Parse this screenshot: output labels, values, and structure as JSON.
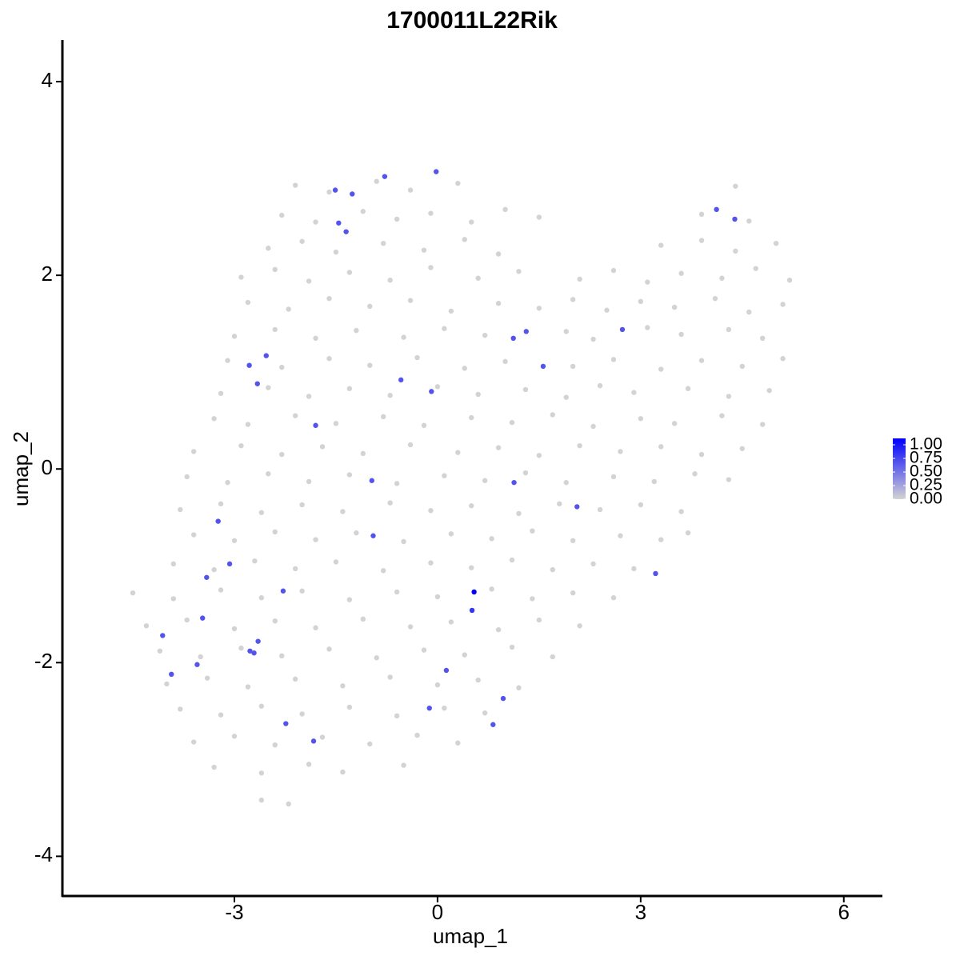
{
  "chart_data": {
    "type": "scatter",
    "title": "1700011L22Rik",
    "x_label": "umap_1",
    "y_label": "umap_2",
    "xlim": [
      -5.54,
      6.57
    ],
    "ylim": [
      -4.41,
      4.43
    ],
    "xticks": [
      -3,
      0,
      3,
      6
    ],
    "yticks": [
      -4,
      -2,
      0,
      2,
      4
    ],
    "low_color": "#d3d3d3",
    "high_color": "#0000ff",
    "colorbar_lim": [
      0,
      1
    ],
    "colorbar_ticks": [
      {
        "value": 0,
        "label": "0.00"
      },
      {
        "value": 0.25,
        "label": "0.25"
      },
      {
        "value": 0.5,
        "label": "0.50"
      },
      {
        "value": 0.75,
        "label": "0.75"
      },
      {
        "value": 1,
        "label": "1.00"
      }
    ],
    "x": [
      -2.1,
      -1.6,
      -0.9,
      -0.4,
      0.3,
      4.4,
      -2.3,
      -1.8,
      -1.1,
      -0.6,
      -0.1,
      0.5,
      1.0,
      1.5,
      3.9,
      4.6,
      -2.5,
      -2.0,
      -1.5,
      -0.8,
      -0.2,
      0.4,
      0.9,
      3.3,
      3.9,
      4.4,
      5.0,
      -2.9,
      -2.4,
      -1.9,
      -1.3,
      -0.7,
      -0.1,
      0.6,
      1.2,
      2.1,
      2.6,
      3.1,
      3.6,
      4.2,
      4.7,
      5.2,
      -2.8,
      -2.2,
      -1.6,
      -1.0,
      -0.4,
      0.2,
      0.9,
      1.5,
      2.0,
      2.5,
      3.0,
      3.5,
      4.1,
      4.6,
      5.1,
      -3.0,
      -2.4,
      -1.8,
      -1.2,
      -0.5,
      0.1,
      0.7,
      1.9,
      2.3,
      3.1,
      3.6,
      4.3,
      4.8,
      -3.1,
      -2.3,
      -1.6,
      -1.0,
      -0.3,
      0.4,
      1.0,
      2.0,
      2.6,
      3.3,
      3.9,
      4.5,
      5.1,
      -3.2,
      -2.5,
      -1.9,
      -1.3,
      -0.7,
      0.0,
      0.6,
      1.3,
      1.9,
      2.4,
      2.9,
      3.7,
      4.3,
      4.9,
      -3.3,
      -2.8,
      -2.1,
      -1.5,
      -0.8,
      -0.2,
      0.5,
      1.1,
      1.7,
      2.3,
      3.0,
      3.5,
      4.2,
      4.8,
      -3.6,
      -2.9,
      -2.3,
      -1.7,
      -1.1,
      -0.4,
      0.3,
      0.9,
      1.5,
      2.1,
      2.7,
      3.3,
      3.9,
      4.5,
      -3.7,
      -3.1,
      -2.5,
      -1.9,
      -1.3,
      -0.6,
      0.1,
      0.7,
      1.3,
      1.9,
      2.6,
      3.2,
      3.8,
      4.3,
      -3.8,
      -3.2,
      -2.6,
      -2.0,
      -1.4,
      -0.7,
      -0.1,
      0.5,
      1.2,
      1.8,
      2.4,
      3.0,
      3.6,
      -3.6,
      -3.0,
      -2.4,
      -1.8,
      -1.2,
      -0.5,
      0.2,
      0.8,
      1.4,
      2.0,
      2.7,
      3.3,
      3.7,
      -3.9,
      -3.3,
      -2.7,
      -2.1,
      -1.5,
      -0.8,
      -0.1,
      0.5,
      1.1,
      1.7,
      2.3,
      2.9,
      -4.5,
      -3.9,
      -3.2,
      -2.6,
      -2.0,
      -1.3,
      -0.6,
      0.0,
      0.8,
      1.4,
      2.0,
      2.6,
      -4.3,
      -3.7,
      -3.0,
      -2.4,
      -1.8,
      -1.1,
      -0.4,
      0.2,
      0.9,
      1.5,
      2.1,
      -4.1,
      -3.5,
      -2.9,
      -2.3,
      -1.6,
      -0.9,
      -0.2,
      0.4,
      1.1,
      1.7,
      -4.0,
      -3.4,
      -2.8,
      -2.1,
      -1.4,
      -0.7,
      0.0,
      0.6,
      1.2,
      -3.8,
      -3.2,
      -2.6,
      -2.0,
      -1.3,
      -0.6,
      0.1,
      0.7,
      -3.6,
      -3.0,
      -2.4,
      -1.7,
      -1.0,
      -0.3,
      0.3,
      -3.3,
      -2.6,
      -1.9,
      -1.4,
      -0.5,
      -2.6,
      -2.2,
      -0.02,
      -0.78,
      -1.51,
      -1.26,
      -1.46,
      -1.35,
      4.12,
      4.39,
      2.73,
      1.31,
      1.12,
      1.56,
      -2.78,
      -2.53,
      -2.66,
      -0.54,
      -0.09,
      -1.8,
      -0.97,
      1.13,
      2.06,
      -3.24,
      -0.95,
      -3.07,
      -3.41,
      3.22,
      -2.28,
      0.54,
      0.51,
      -3.47,
      -4.06,
      -2.65,
      -2.77,
      -2.71,
      -3.55,
      -3.93,
      0.13,
      0.97,
      -0.12,
      -2.24,
      0.82,
      -1.83
    ],
    "y": [
      2.93,
      2.86,
      2.97,
      2.88,
      2.95,
      2.92,
      2.62,
      2.55,
      2.66,
      2.58,
      2.64,
      2.55,
      2.68,
      2.6,
      2.63,
      2.56,
      2.28,
      2.35,
      2.24,
      2.33,
      2.26,
      2.37,
      2.22,
      2.31,
      2.36,
      2.25,
      2.33,
      1.98,
      2.06,
      1.94,
      2.03,
      1.95,
      2.08,
      1.97,
      2.04,
      1.96,
      2.05,
      1.93,
      2.02,
      1.97,
      2.07,
      1.95,
      1.72,
      1.65,
      1.76,
      1.68,
      1.74,
      1.63,
      1.71,
      1.66,
      1.75,
      1.64,
      1.73,
      1.67,
      1.76,
      1.62,
      1.7,
      1.37,
      1.44,
      1.35,
      1.43,
      1.36,
      1.45,
      1.38,
      1.42,
      1.34,
      1.46,
      1.39,
      1.44,
      1.35,
      1.12,
      1.05,
      1.14,
      1.07,
      1.15,
      1.04,
      1.11,
      1.06,
      1.13,
      1.03,
      1.12,
      1.06,
      1.14,
      0.78,
      0.84,
      0.75,
      0.83,
      0.76,
      0.85,
      0.77,
      0.82,
      0.74,
      0.86,
      0.79,
      0.83,
      0.75,
      0.81,
      0.52,
      0.46,
      0.55,
      0.47,
      0.54,
      0.45,
      0.53,
      0.48,
      0.56,
      0.44,
      0.52,
      0.47,
      0.55,
      0.46,
      0.18,
      0.24,
      0.15,
      0.23,
      0.16,
      0.25,
      0.17,
      0.22,
      0.14,
      0.24,
      0.18,
      0.23,
      0.15,
      0.21,
      -0.08,
      -0.14,
      -0.05,
      -0.13,
      -0.06,
      -0.15,
      -0.07,
      -0.12,
      -0.04,
      -0.14,
      -0.08,
      -0.13,
      -0.05,
      -0.11,
      -0.42,
      -0.36,
      -0.45,
      -0.37,
      -0.44,
      -0.35,
      -0.43,
      -0.38,
      -0.46,
      -0.36,
      -0.42,
      -0.37,
      -0.44,
      -0.68,
      -0.74,
      -0.65,
      -0.73,
      -0.66,
      -0.75,
      -0.67,
      -0.72,
      -0.64,
      -0.74,
      -0.69,
      -0.73,
      -0.66,
      -0.98,
      -1.04,
      -0.95,
      -1.03,
      -0.96,
      -1.05,
      -0.97,
      -1.02,
      -0.94,
      -1.04,
      -0.98,
      -1.03,
      -1.28,
      -1.34,
      -1.25,
      -1.33,
      -1.26,
      -1.35,
      -1.27,
      -1.32,
      -1.24,
      -1.34,
      -1.28,
      -1.33,
      -1.62,
      -1.56,
      -1.65,
      -1.57,
      -1.64,
      -1.55,
      -1.63,
      -1.58,
      -1.66,
      -1.56,
      -1.62,
      -1.88,
      -1.94,
      -1.85,
      -1.93,
      -1.86,
      -1.95,
      -1.87,
      -1.92,
      -1.84,
      -1.94,
      -2.22,
      -2.16,
      -2.25,
      -2.17,
      -2.24,
      -2.15,
      -2.23,
      -2.18,
      -2.26,
      -2.48,
      -2.54,
      -2.45,
      -2.53,
      -2.46,
      -2.55,
      -2.47,
      -2.52,
      -2.82,
      -2.76,
      -2.85,
      -2.77,
      -2.84,
      -2.75,
      -2.83,
      -3.08,
      -3.14,
      -3.05,
      -3.13,
      -3.06,
      -3.42,
      -3.46,
      3.07,
      3.02,
      2.88,
      2.84,
      2.54,
      2.45,
      2.68,
      2.58,
      1.44,
      1.42,
      1.35,
      1.06,
      1.07,
      1.17,
      0.88,
      0.92,
      0.8,
      0.45,
      -0.12,
      -0.14,
      -0.39,
      -0.54,
      -0.69,
      -0.98,
      -1.12,
      -1.08,
      -1.26,
      -1.27,
      -1.46,
      -1.54,
      -1.72,
      -1.78,
      -1.88,
      -1.9,
      -2.02,
      -2.12,
      -2.08,
      -2.37,
      -2.47,
      -2.63,
      -2.64,
      -2.81
    ],
    "values": [
      0,
      0,
      0,
      0,
      0,
      0,
      0,
      0,
      0,
      0,
      0,
      0,
      0,
      0,
      0,
      0,
      0,
      0,
      0,
      0,
      0,
      0,
      0,
      0,
      0,
      0,
      0,
      0,
      0,
      0,
      0,
      0,
      0,
      0,
      0,
      0,
      0,
      0,
      0,
      0,
      0,
      0,
      0,
      0,
      0,
      0,
      0,
      0,
      0,
      0,
      0,
      0,
      0,
      0,
      0,
      0,
      0,
      0,
      0,
      0,
      0,
      0,
      0,
      0,
      0,
      0,
      0,
      0,
      0,
      0,
      0,
      0,
      0,
      0,
      0,
      0,
      0,
      0,
      0,
      0,
      0,
      0,
      0,
      0,
      0,
      0,
      0,
      0,
      0,
      0,
      0,
      0,
      0,
      0,
      0,
      0,
      0,
      0,
      0,
      0,
      0,
      0,
      0,
      0,
      0,
      0,
      0,
      0,
      0,
      0,
      0,
      0,
      0,
      0,
      0,
      0,
      0,
      0,
      0,
      0,
      0,
      0,
      0,
      0,
      0,
      0,
      0,
      0,
      0,
      0,
      0,
      0,
      0,
      0,
      0,
      0,
      0,
      0,
      0,
      0,
      0,
      0,
      0,
      0,
      0,
      0,
      0,
      0,
      0,
      0,
      0,
      0,
      0,
      0,
      0,
      0,
      0,
      0,
      0,
      0,
      0,
      0,
      0,
      0,
      0,
      0,
      0,
      0,
      0,
      0,
      0,
      0,
      0,
      0,
      0,
      0,
      0,
      0,
      0,
      0,
      0,
      0,
      0,
      0,
      0,
      0,
      0,
      0,
      0,
      0,
      0,
      0,
      0,
      0,
      0,
      0,
      0,
      0,
      0,
      0,
      0,
      0,
      0,
      0,
      0,
      0,
      0,
      0,
      0,
      0,
      0,
      0,
      0,
      0,
      0,
      0,
      0,
      0,
      0,
      0,
      0,
      0,
      0,
      0,
      0,
      0,
      0,
      0,
      0,
      0,
      0,
      0,
      0,
      0,
      0,
      0,
      0,
      0,
      0,
      0,
      0,
      0.6,
      0.6,
      0.6,
      0.6,
      0.6,
      0.6,
      0.6,
      0.6,
      0.6,
      0.6,
      0.6,
      0.6,
      0.6,
      0.6,
      0.6,
      0.6,
      0.6,
      0.6,
      0.6,
      0.6,
      0.6,
      0.6,
      0.6,
      0.6,
      0.6,
      0.6,
      0.6,
      1,
      0.75,
      0.6,
      0.6,
      0.6,
      0.6,
      0.6,
      0.6,
      0.6,
      0.6,
      0.6,
      0.6,
      0.6,
      0.6,
      0.6
    ]
  }
}
